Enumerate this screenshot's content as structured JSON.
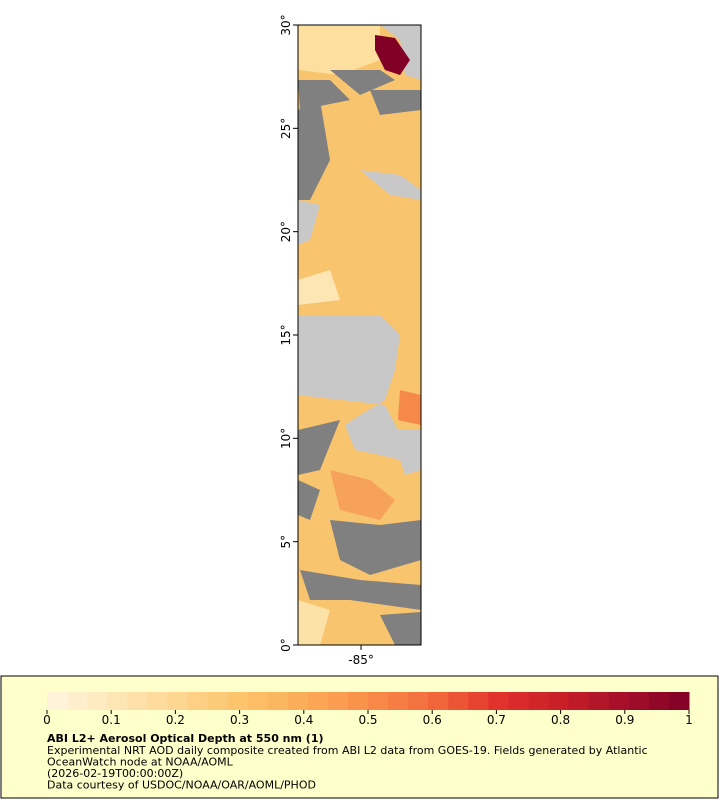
{
  "map": {
    "lat_ticks": [
      {
        "value": 0,
        "label": "0°"
      },
      {
        "value": 5,
        "label": "5°"
      },
      {
        "value": 10,
        "label": "10°"
      },
      {
        "value": 15,
        "label": "15°"
      },
      {
        "value": 20,
        "label": "20°"
      },
      {
        "value": 25,
        "label": "25°"
      },
      {
        "value": 30,
        "label": "30°"
      }
    ],
    "lat_range": [
      0,
      30
    ],
    "lon_ticks": [
      {
        "value": -85,
        "label": "-85°"
      }
    ],
    "lon_range": [
      -88.05,
      -82.1
    ]
  },
  "colorbar": {
    "range": [
      0,
      1
    ],
    "ticks": [
      0,
      0.1,
      0.2,
      0.3,
      0.4,
      0.5,
      0.6,
      0.7,
      0.8,
      0.9,
      1
    ],
    "colors": [
      "#fff6e0",
      "#fee8b8",
      "#fdd792",
      "#fcc46c",
      "#fbac58",
      "#f98e4a",
      "#f26a3c",
      "#e2342c",
      "#c81e27",
      "#a50f2a",
      "#800026"
    ]
  },
  "caption": {
    "title": "ABI L2+ Aerosol Optical Depth at 550 nm (1)",
    "lines": [
      "Experimental NRT AOD daily composite created from ABI L2 data from GOES-19. Fields generated by Atlantic",
      "OceanWatch node at NOAA/AOML",
      "(2026-02-19T00:00:00Z)",
      "Data courtesy of USDOC/NOAA/OAR/AOML/PHOD"
    ]
  }
}
